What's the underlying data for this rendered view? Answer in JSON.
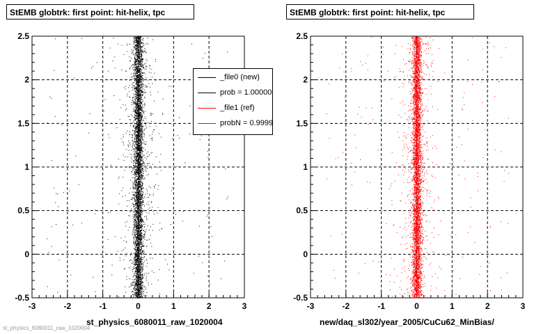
{
  "window": {
    "footer_text": "st_physics_6080011_raw_1020004"
  },
  "chart_data": [
    {
      "type": "scatter",
      "title": "StEMB globtrk: first point: hit-helix, tpc",
      "xlabel": "st_physics_6080011_raw_1020004",
      "ylabel": "",
      "xlim": [
        -3,
        3
      ],
      "ylim": [
        -0.5,
        2.5
      ],
      "xticks": [
        "-3",
        "-2",
        "-1",
        "0",
        "1",
        "2",
        "3"
      ],
      "yticks": [
        "-0.5",
        "0",
        "0.5",
        "1",
        "1.5",
        "2",
        "2.5"
      ],
      "grid": true,
      "legend_position": "top-right",
      "series": [
        {
          "name": "_file0 (new)",
          "color": "#000000",
          "center_x": 0.0,
          "core_width": 0.12,
          "points": 5200
        }
      ],
      "legend": [
        {
          "label": "_file0 (new)",
          "color": "#000000"
        },
        {
          "label": "prob = 1.000000",
          "color": "#000000"
        },
        {
          "label": "_file1 (ref)",
          "color": "#ff0000"
        },
        {
          "label": "probN = 0.999939",
          "color": "#ff0000"
        }
      ]
    },
    {
      "type": "scatter",
      "title": "StEMB globtrk: first point: hit-helix, tpc",
      "xlabel": "new/daq_sl302/year_2005/CuCu62_MinBias/",
      "ylabel": "",
      "xlim": [
        -3,
        3
      ],
      "ylim": [
        -0.5,
        2.5
      ],
      "xticks": [
        "-3",
        "-2",
        "-1",
        "0",
        "1",
        "2",
        "3"
      ],
      "yticks": [
        "-0.5",
        "0",
        "0.5",
        "1",
        "1.5",
        "2",
        "2.5"
      ],
      "grid": true,
      "series": [
        {
          "name": "_file1 (ref)",
          "color": "#ff0000",
          "center_x": 0.0,
          "core_width": 0.12,
          "points": 5200
        }
      ]
    }
  ]
}
